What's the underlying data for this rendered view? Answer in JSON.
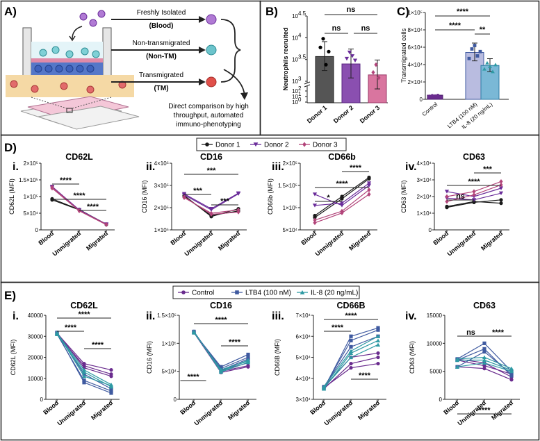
{
  "panel_labels": {
    "A": "A)",
    "B": "B)",
    "C": "C)",
    "D": "D)",
    "E": "E)"
  },
  "colors": {
    "donor1": "#1a1a1a",
    "donor2": "#6a2c9a",
    "donor3": "#b2447a",
    "control": "#6a2c8e",
    "ltb4": "#3f5aa0",
    "il8": "#2e9aa4",
    "blood_cell": "#9a5fc2",
    "nontm_cell": "#4ab0b8",
    "tm_cell": "#d9443a",
    "border": "#222222"
  },
  "schematic": {
    "row1_title": "Freshly Isolated",
    "row1_sub": "(Blood)",
    "row2_title": "Non-transmigrated",
    "row2_sub": "(Non-TM)",
    "row3_title": "Transmigrated",
    "row3_sub": "(TM)",
    "caption_lines": [
      "Direct comparison by high",
      "throughput, automated",
      "immuno-phenotyping"
    ]
  },
  "legend_d": {
    "items": [
      "Donor 1",
      "Donor 2",
      "Donor 3"
    ]
  },
  "legend_e": {
    "items": [
      "Control",
      "LTB4 (100 nM)",
      "IL-8 (20 ng/mL)"
    ]
  },
  "chart_data": [
    {
      "id": "B",
      "type": "bar",
      "title": "",
      "ylabel": "Neutrophils recruited",
      "yscale": "log-broken",
      "categories": [
        "Donor 1",
        "Donor 2",
        "Donor 3"
      ],
      "values": [
        3700,
        2500,
        1400
      ],
      "ytick_labels": [
        "10^4.5",
        "10^4",
        "10^3.5",
        "10^3",
        "10^2",
        "10^1",
        "10^0"
      ],
      "significance": [
        {
          "from": 0,
          "to": 2,
          "label": "ns"
        },
        {
          "from": 0,
          "to": 1,
          "label": "ns"
        },
        {
          "from": 1,
          "to": 2,
          "label": "ns"
        }
      ]
    },
    {
      "id": "C",
      "type": "bar",
      "title": "",
      "ylabel": "Transmigrated cells",
      "categories": [
        "Control",
        "LTB4 (100 nM)",
        "IL-8 (20 ng/mL)"
      ],
      "values": [
        4000,
        54000,
        39000
      ],
      "ylim": [
        0,
        100000
      ],
      "ytick_labels": [
        "0",
        "2×10⁴",
        "4×10⁴",
        "6×10⁴",
        "8×10⁴",
        "1×10⁵"
      ],
      "significance": [
        {
          "from": 0,
          "to": 2,
          "label": "****"
        },
        {
          "from": 0,
          "to": 1,
          "label": "****"
        },
        {
          "from": 1,
          "to": 2,
          "label": "**"
        }
      ]
    },
    {
      "id": "D-i",
      "number": "i.",
      "type": "line",
      "title": "CD62L",
      "ylabel": "CD62L (MFI)",
      "categories": [
        "Blood",
        "Unmigrated",
        "Migrated"
      ],
      "ylim": [
        0,
        200000
      ],
      "ytick_labels": [
        "0",
        "5×10⁴",
        "1×10⁵",
        "1.5×10⁵",
        "2×10⁵"
      ],
      "series": [
        {
          "name": "Donor 1",
          "values": [
            [
              90000,
              60000,
              16000
            ],
            [
              93000,
              61000,
              17000
            ]
          ]
        },
        {
          "name": "Donor 2",
          "values": [
            [
              130000,
              60000,
              17000
            ],
            [
              127000,
              59000,
              16000
            ]
          ]
        },
        {
          "name": "Donor 3",
          "values": [
            [
              128000,
              58000,
              16500
            ],
            [
              125000,
              57000,
              15500
            ]
          ]
        }
      ],
      "significance": [
        {
          "from": 0,
          "to": 1,
          "label": "****"
        },
        {
          "from": 0,
          "to": 2,
          "label": "****"
        },
        {
          "from": 1,
          "to": 2,
          "label": "****"
        }
      ]
    },
    {
      "id": "D-ii",
      "number": "ii.",
      "type": "line",
      "title": "CD16",
      "ylabel": "CD16 (MFI)",
      "categories": [
        "Blood",
        "Unmigrated",
        "Migrated"
      ],
      "ylim": [
        100000,
        400000
      ],
      "ytick_labels": [
        "1×10⁵",
        "2×10⁵",
        "3×10⁵",
        "4×10⁵"
      ],
      "series": [
        {
          "name": "Donor 1",
          "values": [
            [
              255000,
              160000,
              195000
            ],
            [
              250000,
              165000,
              185000
            ]
          ]
        },
        {
          "name": "Donor 2",
          "values": [
            [
              262000,
              195000,
              265000
            ],
            [
              258000,
              190000,
              262000
            ]
          ]
        },
        {
          "name": "Donor 3",
          "values": [
            [
              248000,
              170000,
              180000
            ],
            [
              245000,
              175000,
              190000
            ]
          ]
        }
      ],
      "significance": [
        {
          "from": 0,
          "to": 2,
          "label": "***"
        },
        {
          "from": 0,
          "to": 1,
          "label": "***"
        },
        {
          "from": 1,
          "to": 2,
          "label": "***"
        }
      ]
    },
    {
      "id": "D-iii",
      "number": "iii.",
      "type": "line",
      "title": "CD66b",
      "ylabel": "CD66b (MFI)",
      "categories": [
        "Blood",
        "Unmigrated",
        "Migrated"
      ],
      "ylim": [
        50000,
        200000
      ],
      "ytick_labels": [
        "5×10⁴",
        "1×10⁵",
        "1.5×10⁵",
        "2×10⁵"
      ],
      "series": [
        {
          "name": "Donor 1",
          "values": [
            [
              78000,
              120000,
              165000
            ],
            [
              82000,
              125000,
              168000
            ]
          ]
        },
        {
          "name": "Donor 2",
          "values": [
            [
              130000,
              105000,
              150000
            ],
            [
              105000,
              110000,
              155000
            ]
          ]
        },
        {
          "name": "Donor 3",
          "values": [
            [
              66000,
              88000,
              130000
            ],
            [
              72000,
              92000,
              140000
            ]
          ]
        }
      ],
      "significance": [
        {
          "from": 1,
          "to": 2,
          "label": "****"
        },
        {
          "from": 0,
          "to": 2,
          "label": "****"
        },
        {
          "from": 0,
          "to": 1,
          "label": "*"
        }
      ]
    },
    {
      "id": "D-iv",
      "number": "iv.",
      "type": "line",
      "title": "CD63",
      "ylabel": "CD63 (MFI)",
      "categories": [
        "Blood",
        "Unmigrated",
        "Migrated"
      ],
      "ylim": [
        0,
        40000
      ],
      "ytick_labels": [
        "0",
        "1×10⁴",
        "2×10⁴",
        "3×10⁴",
        "4×10⁴"
      ],
      "series": [
        {
          "name": "Donor 1",
          "values": [
            [
              14000,
              17000,
              16000
            ],
            [
              13500,
              16500,
              18000
            ]
          ]
        },
        {
          "name": "Donor 2",
          "values": [
            [
              23000,
              20000,
              25000
            ],
            [
              19000,
              18000,
              22000
            ]
          ]
        },
        {
          "name": "Donor 3",
          "values": [
            [
              20000,
              23000,
              29000
            ],
            [
              17000,
              21000,
              27000
            ]
          ]
        }
      ],
      "significance": [
        {
          "from": 1,
          "to": 2,
          "label": "***"
        },
        {
          "from": 0,
          "to": 2,
          "label": "****"
        },
        {
          "from": 0,
          "to": 1,
          "label": "ns"
        }
      ]
    },
    {
      "id": "E-i",
      "number": "i.",
      "type": "line",
      "title": "CD62L",
      "ylabel": "CD62L (MFI)",
      "categories": [
        "Blood",
        "Unmigrated",
        "Migrated"
      ],
      "ylim": [
        0,
        40000
      ],
      "ytick_labels": [
        "0",
        "10000",
        "20000",
        "30000",
        "40000"
      ],
      "series": [
        {
          "name": "Control",
          "values": [
            [
              31500,
              17000,
              14000
            ],
            [
              31000,
              16000,
              12000
            ],
            [
              31800,
              15000,
              11000
            ]
          ]
        },
        {
          "name": "LTB4 (100 nM)",
          "values": [
            [
              31500,
              8000,
              3000
            ],
            [
              31000,
              9000,
              4000
            ],
            [
              31800,
              12000,
              5000
            ]
          ]
        },
        {
          "name": "IL-8 (20 ng/mL)",
          "values": [
            [
              31500,
              14000,
              7000
            ],
            [
              31000,
              13000,
              6000
            ],
            [
              31800,
              11000,
              6500
            ]
          ]
        }
      ],
      "significance": [
        {
          "from": 0,
          "to": 2,
          "label": "****"
        },
        {
          "from": 0,
          "to": 1,
          "label": "****"
        },
        {
          "from": 1,
          "to": 2,
          "label": "****"
        }
      ]
    },
    {
      "id": "E-ii",
      "number": "ii.",
      "type": "line",
      "title": "CD16",
      "ylabel": "CD16 (MFI)",
      "categories": [
        "Blood",
        "Unmigrated",
        "Migrated"
      ],
      "ylim": [
        0,
        150000
      ],
      "ytick_labels": [
        "0",
        "5×10⁴",
        "1×10⁵",
        "1.5×10⁵"
      ],
      "series": [
        {
          "name": "Control",
          "values": [
            [
              120000,
              50000,
              60000
            ],
            [
              119000,
              48000,
              58000
            ],
            [
              121000,
              52000,
              65000
            ]
          ]
        },
        {
          "name": "LTB4 (100 nM)",
          "values": [
            [
              120000,
              55000,
              75000
            ],
            [
              119000,
              58000,
              80000
            ],
            [
              121000,
              52000,
              72000
            ]
          ]
        },
        {
          "name": "IL-8 (20 ng/mL)",
          "values": [
            [
              120000,
              50000,
              70000
            ],
            [
              119000,
              53000,
              68000
            ],
            [
              121000,
              49000,
              66000
            ]
          ]
        }
      ],
      "significance": [
        {
          "from": 0,
          "to": 2,
          "label": "****"
        },
        {
          "from": 1,
          "to": 2,
          "label": "****"
        },
        {
          "from": -0.5,
          "to": 0.45,
          "label": "****"
        }
      ]
    },
    {
      "id": "E-iii",
      "number": "iii.",
      "type": "line",
      "title": "CD66B",
      "ylabel": "CD66B (MFI)",
      "categories": [
        "Blood",
        "Unmigrated",
        "Migrated"
      ],
      "ylim": [
        30000,
        70000
      ],
      "ytick_labels": [
        "3×10⁴",
        "4×10⁴",
        "5×10⁴",
        "6×10⁴",
        "7×10⁴"
      ],
      "series": [
        {
          "name": "Control",
          "values": [
            [
              35000,
              47000,
              50000
            ],
            [
              35500,
              45000,
              47000
            ],
            [
              36000,
              50000,
              52000
            ]
          ]
        },
        {
          "name": "LTB4 (100 nM)",
          "values": [
            [
              35000,
              60000,
              64000
            ],
            [
              35500,
              58000,
              63000
            ],
            [
              36000,
              55000,
              60000
            ]
          ]
        },
        {
          "name": "IL-8 (20 ng/mL)",
          "values": [
            [
              35000,
              52000,
              58000
            ],
            [
              35500,
              50000,
              56000
            ],
            [
              36000,
              53000,
              60000
            ]
          ]
        }
      ],
      "significance": [
        {
          "from": 0,
          "to": 1,
          "label": "****"
        },
        {
          "from": 0,
          "to": 2,
          "label": "****"
        },
        {
          "from": 1,
          "to": 2,
          "label": "****"
        }
      ]
    },
    {
      "id": "E-iv",
      "number": "iv.",
      "type": "line",
      "title": "CD63",
      "ylabel": "CD63 (MFI)",
      "categories": [
        "Blood",
        "Unmigrated",
        "Migrated"
      ],
      "ylim": [
        0,
        15000
      ],
      "ytick_labels": [
        "0",
        "5000",
        "10000",
        "15000"
      ],
      "series": [
        {
          "name": "Control",
          "values": [
            [
              7200,
              6500,
              4000
            ],
            [
              5800,
              5500,
              3500
            ],
            [
              7000,
              6000,
              4500
            ]
          ]
        },
        {
          "name": "LTB4 (100 nM)",
          "values": [
            [
              7200,
              10000,
              5000
            ],
            [
              5800,
              8500,
              4500
            ],
            [
              7000,
              9000,
              4200
            ]
          ]
        },
        {
          "name": "IL-8 (20 ng/mL)",
          "values": [
            [
              7200,
              7500,
              5500
            ],
            [
              5800,
              6500,
              5000
            ],
            [
              7000,
              7000,
              5200
            ]
          ]
        }
      ],
      "significance": [
        {
          "from": 0,
          "to": 1,
          "label": "ns"
        },
        {
          "from": 1,
          "to": 2,
          "label": "****"
        },
        {
          "from": 0,
          "to": 2,
          "label": "****",
          "below": true
        }
      ]
    }
  ]
}
